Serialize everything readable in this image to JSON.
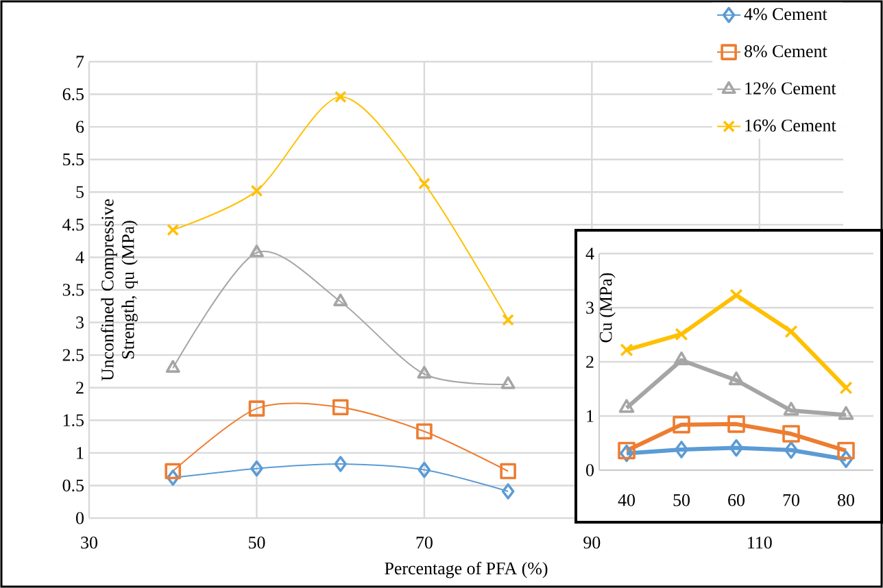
{
  "chart_data": [
    {
      "type": "line",
      "ylabel": "Unconfined Compressive Strength, qu (MPa)",
      "xlabel": "Percentage of PFA (%)",
      "x": [
        40,
        50,
        60,
        70,
        80
      ],
      "xlim": [
        30,
        120
      ],
      "xticks": [
        30,
        50,
        70,
        90,
        110
      ],
      "ylim": [
        0,
        7
      ],
      "yticks": [
        0,
        0.5,
        1,
        1.5,
        2,
        2.5,
        3,
        3.5,
        4,
        4.5,
        5,
        5.5,
        6,
        6.5,
        7
      ],
      "grid": true,
      "legend": "top right",
      "series": [
        {
          "name": "4% Cement",
          "color": "#5b9bd5",
          "marker": "diamond",
          "values": [
            0.62,
            0.76,
            0.83,
            0.74,
            0.41
          ]
        },
        {
          "name": "8% Cement",
          "color": "#ed7d31",
          "marker": "square",
          "values": [
            0.72,
            1.68,
            1.7,
            1.33,
            0.72
          ]
        },
        {
          "name": "12% Cement",
          "color": "#a5a5a5",
          "marker": "triangle",
          "values": [
            2.3,
            4.07,
            3.32,
            2.21,
            2.05
          ]
        },
        {
          "name": "16% Cement",
          "color": "#ffc000",
          "marker": "cross",
          "values": [
            4.42,
            5.02,
            6.46,
            5.13,
            3.04
          ]
        }
      ]
    },
    {
      "type": "line",
      "ylabel": "Cu (MPa)",
      "categories": [
        "40",
        "50",
        "60",
        "70",
        "80"
      ],
      "ylim": [
        0,
        4
      ],
      "yticks": [
        0,
        1,
        2,
        3,
        4
      ],
      "grid": "y",
      "series": [
        {
          "color": "#5b9bd5",
          "marker": "diamond",
          "values": [
            0.31,
            0.38,
            0.41,
            0.37,
            0.2
          ]
        },
        {
          "color": "#ed7d31",
          "marker": "square",
          "values": [
            0.36,
            0.84,
            0.85,
            0.67,
            0.36
          ]
        },
        {
          "color": "#a5a5a5",
          "marker": "triangle",
          "values": [
            1.15,
            2.03,
            1.66,
            1.1,
            1.02
          ]
        },
        {
          "color": "#ffc000",
          "marker": "cross",
          "values": [
            2.22,
            2.51,
            3.23,
            2.56,
            1.52
          ]
        }
      ]
    }
  ]
}
